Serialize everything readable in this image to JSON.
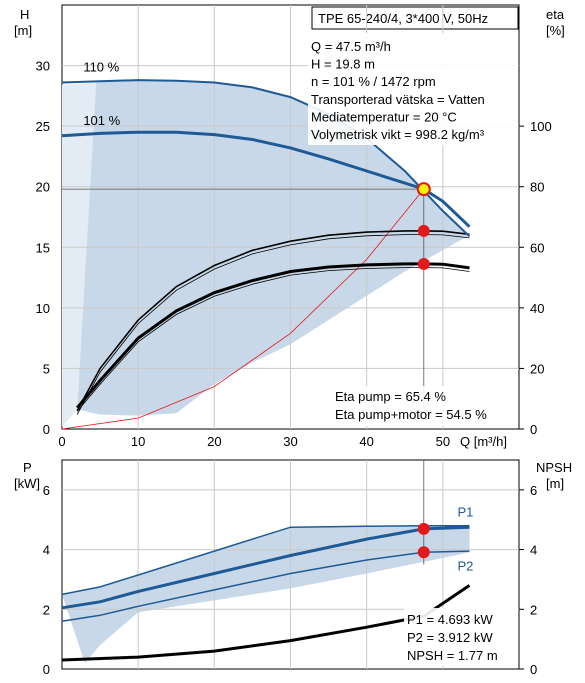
{
  "chart_data": [
    {
      "type": "line",
      "title": "TPE 65-240/4, 3*400 V, 50Hz",
      "xlabel": "Q [m³/h]",
      "ylabel_left": [
        "H",
        "[m]"
      ],
      "ylabel_right": [
        "eta",
        "[%]"
      ],
      "xlim": [
        0,
        60
      ],
      "ylim_left": [
        0,
        35
      ],
      "ylim_right": [
        0,
        140
      ],
      "x_ticks": [
        "0",
        "10",
        "20",
        "30",
        "40",
        "50"
      ],
      "y_ticks_left": [
        "0",
        "5",
        "10",
        "15",
        "20",
        "25",
        "30"
      ],
      "y_ticks_right": [
        "0",
        "20",
        "40",
        "60",
        "80",
        "100"
      ],
      "curve_labels": [
        "110 %",
        "101 %"
      ],
      "series": [
        {
          "role": "head_110",
          "axis": "left",
          "x": [
            0,
            5,
            10,
            15,
            20,
            25,
            30,
            35,
            40,
            45,
            50,
            53.5
          ],
          "y": [
            28.6,
            28.7,
            28.8,
            28.75,
            28.6,
            28.2,
            27.4,
            26.0,
            24.0,
            21.3,
            18.0,
            15.9
          ]
        },
        {
          "role": "head_101",
          "axis": "left",
          "x": [
            0,
            5,
            10,
            15,
            20,
            25,
            30,
            35,
            40,
            45,
            47.5,
            50,
            53.5
          ],
          "y": [
            24.2,
            24.4,
            24.5,
            24.5,
            24.3,
            23.9,
            23.2,
            22.3,
            21.3,
            20.3,
            19.8,
            18.8,
            16.7
          ]
        },
        {
          "role": "eta_pump",
          "axis": "right",
          "x": [
            2,
            5,
            10,
            15,
            20,
            25,
            30,
            35,
            40,
            45,
            47.5,
            50,
            53.5
          ],
          "y": [
            6,
            20,
            36,
            47,
            54,
            59,
            62,
            64,
            65,
            65.4,
            65.4,
            65.3,
            64.3
          ]
        },
        {
          "role": "eta_pump_motor",
          "axis": "right",
          "x": [
            2,
            5,
            10,
            15,
            20,
            25,
            30,
            35,
            40,
            45,
            47.5,
            50,
            53.5
          ],
          "y": [
            7,
            16,
            30,
            39,
            45,
            49,
            52,
            53.5,
            54.2,
            54.5,
            54.5,
            54.4,
            53.2
          ]
        },
        {
          "role": "system_curve",
          "axis": "left",
          "x": [
            0,
            10,
            20,
            30,
            40,
            47.5
          ],
          "y": [
            0,
            0.9,
            3.5,
            7.9,
            14.0,
            19.8
          ]
        }
      ],
      "duty_point": {
        "Q": 47.5,
        "H": 19.8,
        "eta_pump": 65.4,
        "eta_pump_motor": 54.5
      },
      "region": {
        "x": [
          2,
          4.5,
          10,
          15,
          20,
          25,
          30,
          35,
          40,
          45,
          50,
          53.5,
          53.5,
          45,
          40,
          35,
          30,
          25,
          20,
          15,
          10,
          5,
          2
        ],
        "y": [
          1.6,
          28.7,
          28.8,
          28.75,
          28.6,
          28.2,
          27.4,
          26.0,
          24.0,
          21.3,
          18.0,
          15.9,
          16.0,
          13.0,
          11.0,
          9.0,
          7.0,
          5.5,
          3.7,
          1.3,
          1.1,
          1.2,
          1.6
        ]
      },
      "info_lines": [
        "Q = 47.5 m³/h",
        "H = 19.8 m",
        "n = 101 % / 1472 rpm",
        "Transporterad vätska = Vatten",
        "Mediatemperatur = 20 °C",
        "Volymetrisk vikt = 998.2 kg/m³"
      ],
      "eta_lines": [
        "Eta pump = 65.4 %",
        "Eta pump+motor = 54.5 %"
      ],
      "colors": {
        "head": "#1f5a96",
        "region": "#c8d8e8",
        "region_light": "#e3ecf5",
        "duty": "#e31a1c",
        "system": "#e31a1c",
        "duty_head_fill": "#f5f50a"
      }
    },
    {
      "type": "line",
      "xlabel": "",
      "ylabel_left": [
        "P",
        "[kW]"
      ],
      "ylabel_right": [
        "NPSH",
        "[m]"
      ],
      "xlim": [
        0,
        60
      ],
      "ylim_left": [
        0,
        7
      ],
      "y_ticks_left": [
        "0",
        "2",
        "4",
        "6"
      ],
      "y_ticks_right": [
        "0",
        "2",
        "4",
        "6"
      ],
      "series": [
        {
          "name": "P1",
          "axis": "left",
          "x": [
            0,
            5,
            10,
            20,
            30,
            40,
            47.5,
            53.5
          ],
          "y": [
            2.05,
            2.25,
            2.6,
            3.2,
            3.8,
            4.35,
            4.693,
            4.75
          ]
        },
        {
          "name": "P2",
          "axis": "left",
          "x": [
            0,
            5,
            10,
            20,
            30,
            40,
            47.5,
            53.5
          ],
          "y": [
            1.6,
            1.8,
            2.1,
            2.65,
            3.2,
            3.65,
            3.912,
            3.95
          ]
        },
        {
          "role": "P_110_upper",
          "axis": "left",
          "x": [
            0,
            5,
            10,
            20,
            30,
            40,
            47.5,
            53.5
          ],
          "y": [
            2.5,
            2.75,
            3.15,
            3.95,
            4.75,
            4.78,
            4.8,
            4.8
          ]
        },
        {
          "role": "NPSH",
          "axis": "right",
          "x": [
            0,
            10,
            20,
            30,
            40,
            47.5,
            53.5
          ],
          "y": [
            0.3,
            0.4,
            0.6,
            0.95,
            1.4,
            1.77,
            2.8
          ]
        }
      ],
      "duty_points": {
        "P1": 4.693,
        "P2": 3.912
      },
      "region": {
        "x": [
          0,
          5,
          10,
          20,
          30,
          40,
          47.5,
          53.5,
          53.5,
          40,
          30,
          20,
          10,
          5,
          3
        ],
        "y": [
          2.5,
          2.75,
          3.15,
          3.95,
          4.75,
          4.78,
          4.8,
          4.8,
          3.9,
          3.2,
          2.7,
          2.3,
          1.9,
          0.8,
          0.2
        ]
      },
      "info_lines": [
        "P1 = 4.693 kW",
        "P2 = 3.912 kW",
        "NPSH = 1.77 m"
      ],
      "colors": {
        "line": "#1f5a96",
        "npsh": "#000000",
        "region": "#c8d8e8",
        "duty": "#e31a1c"
      }
    }
  ]
}
